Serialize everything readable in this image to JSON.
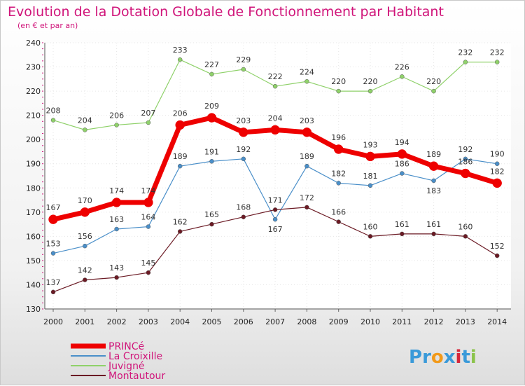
{
  "chart_data": {
    "type": "line",
    "title": "Evolution de la Dotation Globale de Fonctionnement par Habitant",
    "subtitle": "(en € et par an)",
    "xlabel": "",
    "ylabel": "",
    "ylim": [
      130,
      240
    ],
    "yticks": [
      130,
      140,
      150,
      160,
      170,
      180,
      190,
      200,
      210,
      220,
      230,
      240
    ],
    "grid": true,
    "x": [
      "2000",
      "2001",
      "2002",
      "2003",
      "2004",
      "2005",
      "2006",
      "2007",
      "2008",
      "2009",
      "2010",
      "2011",
      "2012",
      "2013",
      "2014"
    ],
    "series": [
      {
        "name": "Juvigné",
        "color": "#8fd16a",
        "values": [
          208,
          204,
          206,
          207,
          233,
          227,
          229,
          222,
          224,
          220,
          220,
          226,
          220,
          232,
          232
        ]
      },
      {
        "name": "La Croixille",
        "color": "#4a8fc9",
        "values": [
          153,
          156,
          163,
          164,
          189,
          191,
          192,
          167,
          189,
          182,
          181,
          186,
          183,
          192,
          190
        ]
      },
      {
        "name": "Montautour",
        "color": "#6b1a24",
        "values": [
          137,
          142,
          143,
          145,
          162,
          165,
          168,
          171,
          172,
          166,
          160,
          161,
          161,
          160,
          152
        ]
      },
      {
        "name": "PRINCé",
        "color": "#ee0000",
        "values": [
          167,
          170,
          174,
          174,
          206,
          209,
          203,
          204,
          203,
          196,
          193,
          194,
          189,
          186,
          182
        ]
      }
    ],
    "legend": [
      "PRINCé",
      "La Croixille",
      "Juvigné",
      "Montautour"
    ],
    "legend_position": "bottom-left"
  },
  "logo": {
    "text": "Proxiti",
    "letters": [
      "P",
      "r",
      "o",
      "x",
      "i",
      "t",
      "i"
    ],
    "colors": [
      "#3a9ad9",
      "#3a9ad9",
      "#f29a1a",
      "#3a9ad9",
      "#d6263a",
      "#3a9ad9",
      "#8bc34a"
    ]
  }
}
